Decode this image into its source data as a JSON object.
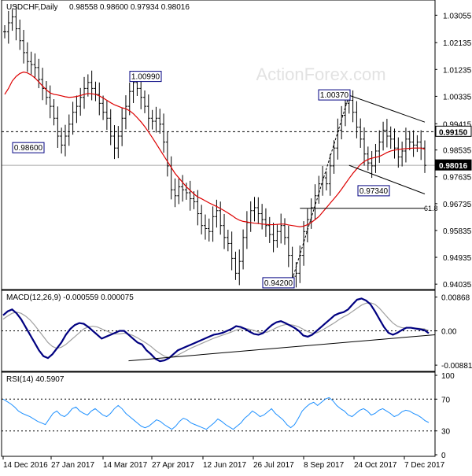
{
  "header": {
    "symbol": "USDCHF,Daily",
    "ohlc": "0.98558 0.98600 0.97934 0.98016"
  },
  "watermark": "ActionForex.com",
  "colors": {
    "candle": "#000000",
    "ma": "#dd0000",
    "macd": "#000080",
    "signal": "#a0a0a0",
    "rsi": "#1e90ff",
    "lines": "#000000",
    "grid_dots": "#000000",
    "watermark": "#e6e6e6",
    "label_border": "#000080"
  },
  "x_labels": [
    "14 Dec 2016",
    "27 Jan 2017",
    "14 Mar 2017",
    "27 Apr 2017",
    "12 Jun 2017",
    "26 Jul 2017",
    "8 Sep 2017",
    "24 Oct 2017",
    "7 Dec 2017"
  ],
  "chart_data": [
    {
      "type": "candlestick",
      "panel": "price",
      "title": "USDCHF,Daily",
      "ylim": [
        0.9396,
        1.0346
      ],
      "yticks": [
        "1.03055",
        "1.02135",
        "1.01235",
        "1.00335",
        "0.99415",
        "0.98535",
        "0.97635",
        "0.96735",
        "0.95835",
        "0.94935",
        "0.94035"
      ],
      "current_price": "0.98016",
      "marked_level": "0.99150",
      "level_lines": [
        0.9915,
        0.9802
      ],
      "series_close": [
        1.025,
        1.028,
        1.03,
        1.026,
        1.022,
        1.018,
        1.015,
        1.014,
        1.013,
        1.009,
        1.006,
        1.003,
        1.0,
        0.996,
        0.99,
        0.987,
        0.99,
        0.994,
        0.998,
        1.0,
        1.003,
        1.006,
        1.008,
        1.006,
        1.004,
        1.001,
        0.998,
        0.996,
        0.99,
        0.986,
        0.99,
        0.996,
        1.0,
        1.005,
        1.008,
        1.006,
        1.003,
        1.0,
        0.996,
        0.995,
        0.996,
        0.994,
        0.988,
        0.98,
        0.972,
        0.97,
        0.973,
        0.972,
        0.971,
        0.969,
        0.968,
        0.964,
        0.96,
        0.959,
        0.958,
        0.963,
        0.965,
        0.96,
        0.956,
        0.954,
        0.949,
        0.944,
        0.948,
        0.956,
        0.961,
        0.965,
        0.966,
        0.964,
        0.962,
        0.96,
        0.957,
        0.955,
        0.958,
        0.96,
        0.956,
        0.95,
        0.943,
        0.944,
        0.95,
        0.958,
        0.962,
        0.966,
        0.97,
        0.974,
        0.976,
        0.974,
        0.98,
        0.986,
        0.992,
        0.997,
        1.001,
        1.002,
        0.998,
        0.993,
        0.989,
        0.984,
        0.981,
        0.98,
        0.985,
        0.988,
        0.992,
        0.99,
        0.989,
        0.986,
        0.983,
        0.985,
        0.989,
        0.988,
        0.987,
        0.988,
        0.986,
        0.9802
      ],
      "series_ma": [
        1.004,
        1.006,
        1.0085,
        1.01,
        1.011,
        1.0115,
        1.0112,
        1.0105,
        1.0095,
        1.0082,
        1.0068,
        1.0055,
        1.0045,
        1.004,
        1.0038,
        1.0035,
        1.0032,
        1.003,
        1.0031,
        1.0033,
        1.0036,
        1.004,
        1.0043,
        1.0042,
        1.004,
        1.0035,
        1.0028,
        1.002,
        1.0012,
        1.0005,
        1.0,
        0.9995,
        0.9992,
        0.9985,
        0.9975,
        0.9962,
        0.9948,
        0.9932,
        0.9914,
        0.9895,
        0.9875,
        0.9855,
        0.9835,
        0.9815,
        0.9795,
        0.9775,
        0.976,
        0.9745,
        0.973,
        0.9718,
        0.9706,
        0.9696,
        0.969,
        0.9683,
        0.9676,
        0.967,
        0.9664,
        0.9657,
        0.965,
        0.9642,
        0.9634,
        0.9625,
        0.9618,
        0.9614,
        0.9612,
        0.961,
        0.9608,
        0.9607,
        0.9605,
        0.9604,
        0.9603,
        0.9603,
        0.9604,
        0.9605,
        0.9605,
        0.9602,
        0.96,
        0.9598,
        0.9596,
        0.9598,
        0.9603,
        0.961,
        0.962,
        0.963,
        0.9645,
        0.966,
        0.9675,
        0.969,
        0.9705,
        0.9722,
        0.974,
        0.9758,
        0.9775,
        0.979,
        0.9805,
        0.9815,
        0.9822,
        0.9826,
        0.9829,
        0.9832,
        0.9838,
        0.9845,
        0.985,
        0.9853,
        0.9855,
        0.9857,
        0.9858,
        0.9859,
        0.986,
        0.986,
        0.986,
        0.9856
      ],
      "price_labels": [
        {
          "text": "0.98600",
          "index": 12,
          "value": 0.986
        },
        {
          "text": "1.00990",
          "index": 31,
          "value": 1.0099
        },
        {
          "text": "0.94200",
          "index": 76,
          "value": 0.942
        },
        {
          "text": "1.00370",
          "index": 91,
          "value": 1.0037
        },
        {
          "text": "0.97340",
          "index": 99,
          "value": 0.9734
        }
      ],
      "fib_label": "61.8",
      "trendlines": [
        {
          "kind": "channel-top",
          "from": [
            91,
            1.0037
          ],
          "to": [
            111,
            0.9947
          ]
        },
        {
          "kind": "channel-bottom",
          "from": [
            91,
            0.9802
          ],
          "to": [
            111,
            0.9706
          ]
        },
        {
          "kind": "rise-dotted",
          "from": [
            76,
            0.942
          ],
          "to": [
            91,
            1.0037
          ]
        },
        {
          "kind": "fib-618",
          "from": [
            78,
            0.9658
          ],
          "to": [
            111,
            0.9658
          ]
        }
      ]
    },
    {
      "type": "line",
      "panel": "macd",
      "title": "MACD(12,26,9) -0.000559 0.000075",
      "ylim": [
        -0.01,
        0.01
      ],
      "yticks": [
        "0.00868",
        "0.00",
        "-0.00881"
      ],
      "series": [
        {
          "values": [
            0.004,
            0.005,
            0.0055,
            0.0045,
            0.003,
            0.001,
            -0.001,
            -0.003,
            -0.005,
            -0.0065,
            -0.007,
            -0.006,
            -0.0045,
            -0.003,
            -0.001,
            0.0005,
            0.0015,
            0.002,
            0.0018,
            0.001,
            0.0,
            -0.001,
            -0.002,
            -0.0015,
            -0.001,
            -0.0005,
            0.0,
            0.0,
            -0.001,
            -0.002,
            -0.003,
            -0.0035,
            -0.005,
            -0.006,
            -0.0072,
            -0.0078,
            -0.0076,
            -0.007,
            -0.006,
            -0.005,
            -0.0045,
            -0.004,
            -0.0035,
            -0.003,
            -0.0025,
            -0.002,
            -0.0015,
            -0.001,
            -0.0008,
            -0.0005,
            0.0,
            0.0005,
            0.0012,
            0.001,
            0.0005,
            -0.0002,
            -0.0008,
            -0.001,
            -0.0006,
            0.0005,
            0.0015,
            0.0022,
            0.0025,
            0.002,
            0.0014,
            0.0008,
            0.0,
            -0.0012,
            -0.0015,
            -0.001,
            0.0,
            0.001,
            0.002,
            0.003,
            0.004,
            0.0045,
            0.0048,
            0.0055,
            0.0068,
            0.008,
            0.0083,
            0.0078,
            0.0068,
            0.005,
            0.003,
            0.001,
            -0.0005,
            -0.001,
            -0.0005,
            0.0002,
            0.0008,
            0.0008,
            0.0006,
            0.0004,
            0.0002,
            -0.0006
          ]
        },
        {
          "values": [
            0.003,
            0.0038,
            0.0045,
            0.0048,
            0.0045,
            0.0038,
            0.0028,
            0.0015,
            0.0,
            -0.0015,
            -0.003,
            -0.004,
            -0.0045,
            -0.0042,
            -0.0035,
            -0.0025,
            -0.0015,
            -0.0005,
            0.0005,
            0.001,
            0.0012,
            0.001,
            0.0005,
            0.0,
            -0.0005,
            -0.0008,
            -0.0008,
            -0.0006,
            -0.0008,
            -0.0012,
            -0.0018,
            -0.0025,
            -0.0032,
            -0.004,
            -0.005,
            -0.0058,
            -0.0065,
            -0.0068,
            -0.0066,
            -0.0062,
            -0.0056,
            -0.005,
            -0.0044,
            -0.0039,
            -0.0034,
            -0.0029,
            -0.0024,
            -0.0019,
            -0.0015,
            -0.0011,
            -0.0007,
            -0.0003,
            0.0002,
            0.0005,
            0.0006,
            0.0004,
            0.0001,
            -0.0003,
            -0.0005,
            -0.0003,
            0.0002,
            0.0008,
            0.0013,
            0.0016,
            0.0016,
            0.0014,
            0.001,
            0.0004,
            -0.0002,
            -0.0006,
            -0.0005,
            0.0,
            0.0007,
            0.0014,
            0.0021,
            0.0029,
            0.0036,
            0.0042,
            0.005,
            0.0058,
            0.0066,
            0.0071,
            0.0072,
            0.0068,
            0.0058,
            0.0045,
            0.0032,
            0.002,
            0.0012,
            0.0008,
            0.0008,
            0.0008,
            0.0007,
            0.0006,
            0.0005,
            0.0001
          ]
        }
      ],
      "trendline": {
        "from": [
          28,
          -0.0077
        ],
        "to": [
          95,
          -0.0012
        ]
      }
    },
    {
      "type": "line",
      "panel": "rsi",
      "title": "RSI(14) 40.5907",
      "ylim": [
        0,
        100
      ],
      "yticks": [
        "100",
        "70",
        "30",
        "0"
      ],
      "levels": [
        70,
        30
      ],
      "values": [
        70,
        67,
        64,
        60,
        55,
        52,
        50,
        48,
        45,
        42,
        40,
        38,
        45,
        52,
        55,
        50,
        48,
        52,
        58,
        60,
        55,
        52,
        50,
        55,
        58,
        54,
        50,
        48,
        52,
        58,
        62,
        58,
        52,
        48,
        44,
        40,
        36,
        34,
        36,
        40,
        44,
        42,
        38,
        35,
        32,
        36,
        42,
        46,
        44,
        40,
        38,
        36,
        34,
        32,
        36,
        40,
        45,
        42,
        38,
        35,
        32,
        36,
        40,
        46,
        50,
        55,
        52,
        48,
        50,
        54,
        58,
        52,
        48,
        44,
        38,
        34,
        38,
        46,
        55,
        60,
        64,
        66,
        62,
        66,
        70,
        72,
        68,
        62,
        58,
        55,
        50,
        48,
        52,
        56,
        58,
        55,
        50,
        52,
        56,
        58,
        55,
        52,
        48,
        50,
        54,
        56,
        55,
        52,
        50,
        47,
        43,
        40.59
      ]
    }
  ]
}
